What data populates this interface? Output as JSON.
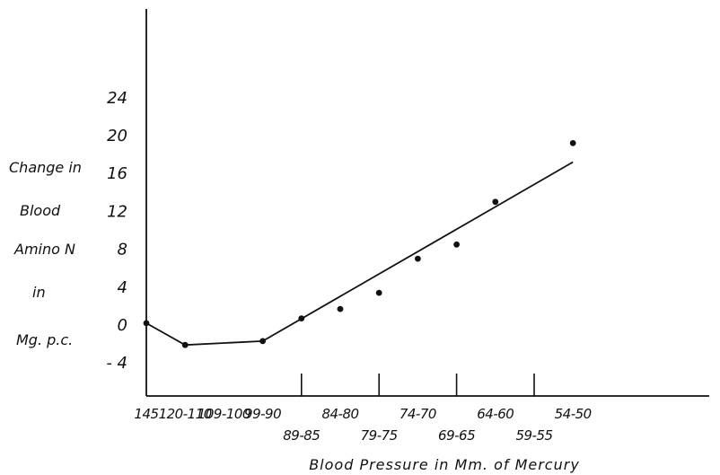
{
  "chart_data": {
    "type": "scatter",
    "title": "",
    "xlabel": "Blood Pressure in Mm. of Mercury",
    "ylabel_lines": [
      "Change in",
      "Blood",
      "Amino N",
      "in",
      "Mg. p.c."
    ],
    "categories": [
      "145",
      "120-110",
      "109-100",
      "99-90",
      "89-85",
      "84-80",
      "79-75",
      "74-70",
      "69-65",
      "64-60",
      "59-55",
      "54-50"
    ],
    "yticks": [
      "24",
      "20",
      "16",
      "12",
      "8",
      "4",
      "0",
      "- 4"
    ],
    "ylim": [
      -8,
      32
    ],
    "grid": false,
    "legend": "none",
    "series": [
      {
        "points": [
          {
            "x": "145",
            "y": 0.2
          },
          {
            "x": "120-110",
            "y": -2.1
          },
          {
            "x": "99-90",
            "y": -1.7
          },
          {
            "x": "89-85",
            "y": 0.7
          },
          {
            "x": "84-80",
            "y": 1.7
          },
          {
            "x": "79-75",
            "y": 3.4
          },
          {
            "x": "74-70",
            "y": 7.0
          },
          {
            "x": "69-65",
            "y": 8.5
          },
          {
            "x": "64-60",
            "y": 13.0
          },
          {
            "x": "54-50",
            "y": 19.2
          }
        ]
      }
    ],
    "fit_line": [
      {
        "x": "145",
        "y": 0.2
      },
      {
        "x": "120-110",
        "y": -2.1
      },
      {
        "x": "99-90",
        "y": -1.7
      },
      {
        "x": "54-50",
        "y": 17.2
      }
    ],
    "colors": {
      "ink": "#111111",
      "background": "#ffffff"
    }
  }
}
